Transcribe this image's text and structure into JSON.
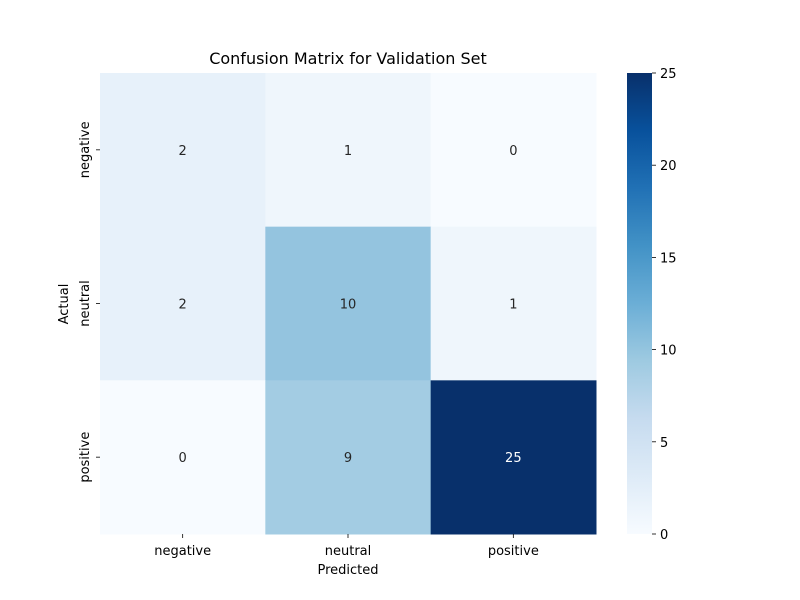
{
  "chart_data": {
    "type": "heatmap",
    "title": "Confusion Matrix for Validation Set",
    "xlabel": "Predicted",
    "ylabel": "Actual",
    "x_categories": [
      "negative",
      "neutral",
      "positive"
    ],
    "y_categories": [
      "negative",
      "neutral",
      "positive"
    ],
    "values": [
      [
        2,
        1,
        0
      ],
      [
        2,
        10,
        1
      ],
      [
        0,
        9,
        25
      ]
    ],
    "colorbar": {
      "min": 0,
      "max": 25,
      "ticks": [
        0,
        5,
        10,
        15,
        20,
        25
      ]
    },
    "colormap": "Blues",
    "annotations": true,
    "grid": false,
    "legend": "colorbar-right"
  }
}
